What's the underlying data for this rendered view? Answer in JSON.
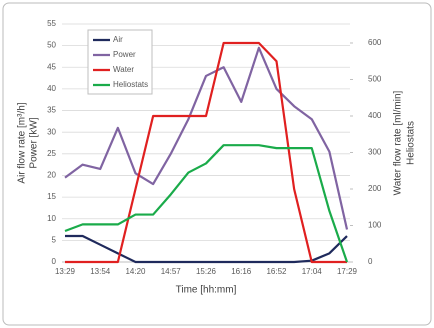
{
  "chart_data": {
    "type": "line",
    "xlabel": "Time [hh:mm]",
    "ylabel": [
      "Air flow rate [m³/h]",
      "Power [kW]"
    ],
    "y2label": [
      "Water flow rate [ml/min]",
      "Heliostats"
    ],
    "categories": [
      "13:29",
      null,
      "13:54",
      null,
      "14:20",
      null,
      "14:57",
      null,
      "15:26",
      null,
      "16:16",
      null,
      "16:52",
      null,
      "17:04",
      null,
      "17:29"
    ],
    "ylim": [
      0,
      55
    ],
    "yticks": [
      0,
      5,
      10,
      15,
      20,
      25,
      30,
      35,
      40,
      45,
      50,
      55
    ],
    "y2lim": [
      0,
      652
    ],
    "y2ticks": [
      0,
      100,
      200,
      300,
      400,
      500,
      600
    ],
    "grid": true,
    "legend": "upper left",
    "series": [
      {
        "name": "Air",
        "color": "#1f2a5c",
        "values": [
          6,
          6,
          4,
          2,
          0,
          0,
          0,
          0,
          0,
          0,
          0,
          0,
          0,
          0,
          0.3,
          2,
          6
        ]
      },
      {
        "name": "Power",
        "color": "#8064a2",
        "values": [
          19.5,
          22.5,
          21.5,
          31,
          20.5,
          18,
          25,
          33,
          43,
          45,
          37,
          49.5,
          40,
          36,
          33,
          25.5,
          7.5
        ]
      },
      {
        "name": "Water",
        "color": "#e02020",
        "axis": "y2",
        "values": [
          0,
          0,
          0,
          0,
          200,
          400,
          400,
          400,
          400,
          600,
          600,
          600,
          550,
          200,
          0,
          0,
          0
        ]
      },
      {
        "name": "Heliostats",
        "color": "#1aab4a",
        "axis": "y2",
        "values": [
          85,
          103,
          103,
          103,
          130,
          130,
          185,
          245,
          270,
          320,
          320,
          320,
          312,
          312,
          312,
          140,
          0
        ]
      }
    ]
  }
}
